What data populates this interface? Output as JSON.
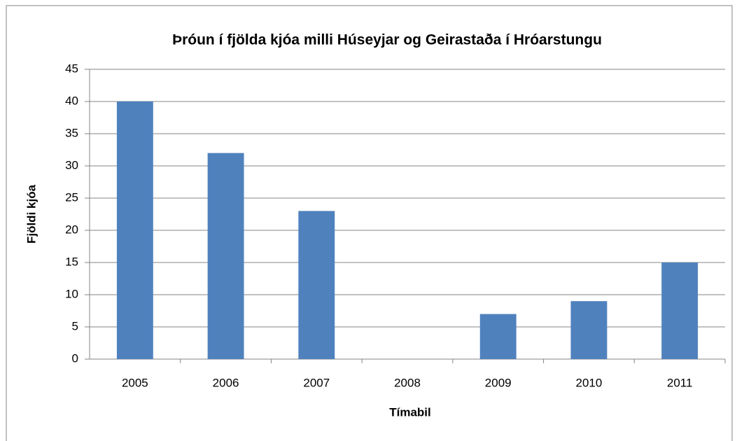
{
  "chart_data": {
    "type": "bar",
    "title": "Þróun í fjölda kjóa milli Húseyjar og Geirastaða í Hróarstungu",
    "x_label": "Tímabil",
    "y_label": "Fjöldi kjóa",
    "categories": [
      "2005",
      "2006",
      "2007",
      "2008",
      "2009",
      "2010",
      "2011"
    ],
    "values": [
      40,
      32,
      23,
      0,
      7,
      9,
      15
    ],
    "color": "#4f81bd",
    "ylim": [
      0,
      45
    ],
    "yticks": [
      0,
      5,
      10,
      15,
      20,
      25,
      30,
      35,
      40,
      45
    ],
    "grid": true
  }
}
